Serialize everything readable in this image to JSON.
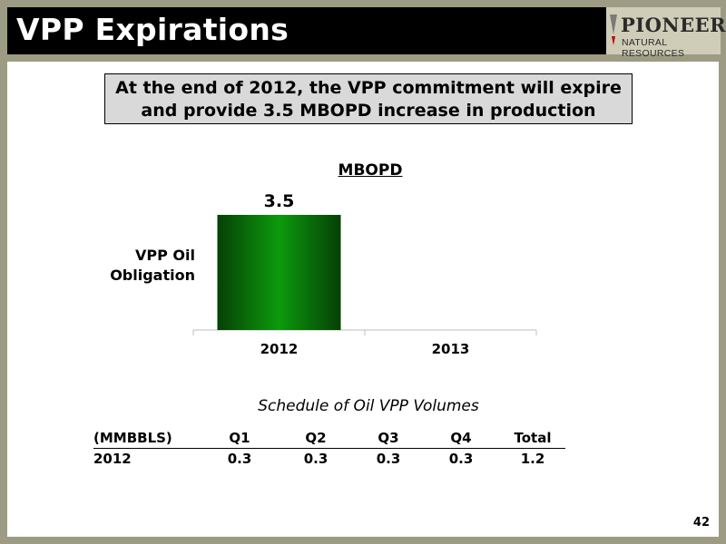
{
  "header": {
    "title": "VPP Expirations",
    "logo": {
      "line1": "PIONEER",
      "line2": "NATURAL RESOURCES",
      "colors": [
        "#7a7a7a",
        "#c00000"
      ]
    }
  },
  "callout": {
    "line1": "At the end of 2012, the VPP commitment will expire",
    "line2": "and provide 3.5 MBOPD increase in production"
  },
  "chart_data": {
    "type": "bar",
    "title": "MBOPD",
    "categories": [
      "2012",
      "2013"
    ],
    "series": [
      {
        "name": "VPP Oil Obligation",
        "values": [
          3.5,
          0
        ],
        "color": "#0a7a0a"
      }
    ],
    "data_labels": [
      "3.5",
      ""
    ],
    "ylim": [
      0,
      3.5
    ],
    "grid": false,
    "legend": "none"
  },
  "schedule": {
    "title": "Schedule of Oil VPP Volumes",
    "headers": [
      "(MMBBLS)",
      "Q1",
      "Q2",
      "Q3",
      "Q4",
      "Total"
    ],
    "rows": [
      [
        "2012",
        "0.3",
        "0.3",
        "0.3",
        "0.3",
        "1.2"
      ]
    ]
  },
  "footer": {
    "page_number": "42"
  }
}
